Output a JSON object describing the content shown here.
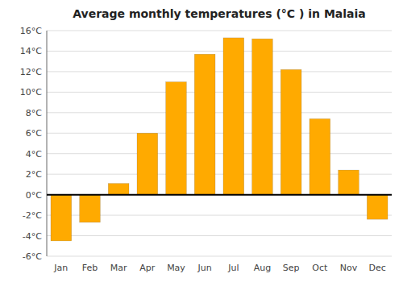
{
  "chart_data": {
    "type": "bar",
    "title": "Average monthly temperatures (°C ) in Malaia",
    "categories": [
      "Jan",
      "Feb",
      "Mar",
      "Apr",
      "May",
      "Jun",
      "Jul",
      "Aug",
      "Sep",
      "Oct",
      "Nov",
      "Dec"
    ],
    "values": [
      -4.5,
      -2.7,
      1.1,
      6.0,
      11.0,
      13.7,
      15.3,
      15.2,
      12.2,
      7.4,
      2.4,
      -2.4
    ],
    "color": "#FFAA00",
    "ylim": [
      -6,
      16
    ],
    "yticks": [
      {
        "value": -6,
        "label": "-6°C"
      },
      {
        "value": -4,
        "label": "-4°C"
      },
      {
        "value": -2,
        "label": "-2°C"
      },
      {
        "value": 0,
        "label": "0°C"
      },
      {
        "value": 2,
        "label": "2°C"
      },
      {
        "value": 4,
        "label": "4°C"
      },
      {
        "value": 6,
        "label": "6°C"
      },
      {
        "value": 8,
        "label": "8°C"
      },
      {
        "value": 10,
        "label": "10°C"
      },
      {
        "value": 12,
        "label": "12°C"
      },
      {
        "value": 14,
        "label": "14°C"
      },
      {
        "value": 16,
        "label": "16°C"
      }
    ],
    "grid": true
  }
}
